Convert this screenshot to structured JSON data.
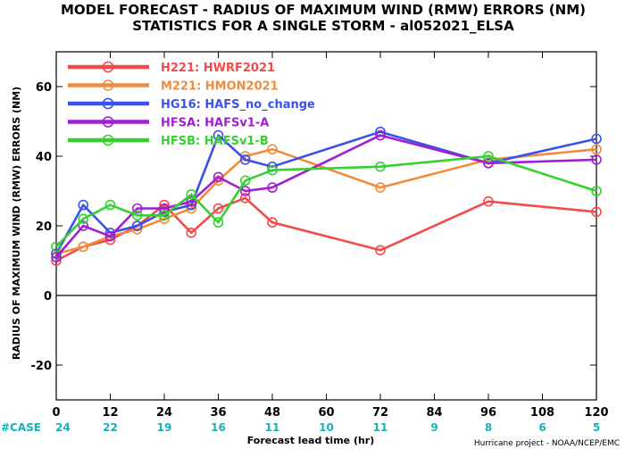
{
  "chart_data": {
    "type": "line",
    "title_line1": "MODEL FORECAST - RADIUS OF MAXIMUM WIND (RMW) ERRORS (NM)",
    "title_line2": "STATISTICS FOR A SINGLE STORM - al052021_ELSA",
    "ylabel": "RADIUS OF MAXIMUM WIND (RMW) ERRORS (NM)",
    "xlabel": "Forecast lead time (hr)",
    "credit": "Hurricane project - NOAA/NCEP/EMC",
    "xlim": [
      0,
      120
    ],
    "ylim": [
      -30,
      70
    ],
    "x_ticks": [
      0,
      12,
      24,
      36,
      48,
      60,
      72,
      84,
      96,
      108,
      120
    ],
    "y_ticks": [
      -20,
      0,
      20,
      40,
      60
    ],
    "case_label": "#CASE",
    "cases": [
      24,
      22,
      19,
      16,
      11,
      10,
      11,
      9,
      8,
      6,
      5
    ],
    "series": [
      {
        "name": "H221: HWRF2021",
        "color": "#f24b4b",
        "x": [
          0,
          6,
          12,
          18,
          24,
          30,
          36,
          42,
          48,
          72,
          96,
          120
        ],
        "y": [
          10,
          14,
          16,
          20,
          26,
          18,
          25,
          28,
          21,
          13,
          27,
          24
        ]
      },
      {
        "name": "M221: HMON2021",
        "color": "#f08c3c",
        "x": [
          0,
          6,
          12,
          18,
          24,
          30,
          36,
          42,
          48,
          72,
          96,
          120
        ],
        "y": [
          12,
          14,
          17,
          19,
          22,
          25,
          33,
          40,
          42,
          31,
          39,
          42
        ]
      },
      {
        "name": "HG16: HAFS_no_change",
        "color": "#3a52ea",
        "x": [
          0,
          6,
          12,
          18,
          24,
          30,
          36,
          42,
          48,
          72,
          96,
          120
        ],
        "y": [
          12,
          26,
          18,
          20,
          24,
          26,
          46,
          39,
          37,
          47,
          38,
          45
        ]
      },
      {
        "name": "HFSA: HAFSv1-A",
        "color": "#a21fd0",
        "x": [
          0,
          6,
          12,
          18,
          24,
          30,
          36,
          42,
          48,
          72,
          96,
          120
        ],
        "y": [
          11,
          20,
          17,
          25,
          25,
          27,
          34,
          30,
          31,
          46,
          38,
          39
        ]
      },
      {
        "name": "HFSB: HAFSv1-B",
        "color": "#35d12e",
        "x": [
          0,
          6,
          12,
          18,
          24,
          30,
          36,
          42,
          48,
          72,
          96,
          120
        ],
        "y": [
          14,
          22,
          26,
          23,
          23,
          29,
          21,
          33,
          36,
          37,
          40,
          30
        ]
      }
    ],
    "grid": false,
    "legend_position": "top-left"
  }
}
